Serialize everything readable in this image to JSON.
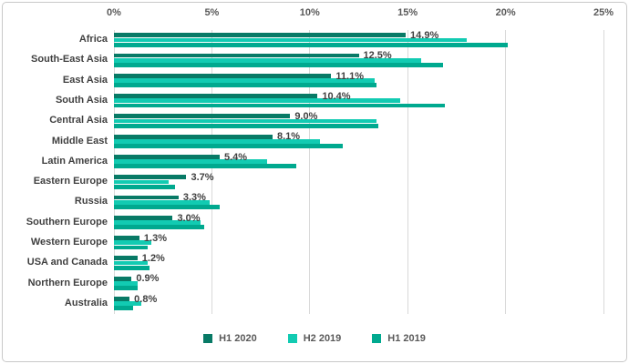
{
  "chart_data": {
    "type": "bar",
    "orientation": "horizontal",
    "title": "",
    "categories": [
      "Africa",
      "South-East Asia",
      "East Asia",
      "South Asia",
      "Central Asia",
      "Middle East",
      "Latin America",
      "Eastern Europe",
      "Russia",
      "Southern Europe",
      "Western Europe",
      "USA and Canada",
      "Northern Europe",
      "Australia"
    ],
    "series": [
      {
        "name": "H1 2020",
        "color": "#087a66",
        "values": [
          14.9,
          12.5,
          11.1,
          10.4,
          9.0,
          8.1,
          5.4,
          3.7,
          3.3,
          3.0,
          1.3,
          1.2,
          0.9,
          0.8
        ]
      },
      {
        "name": "H2 2019",
        "color": "#12cbb2",
        "values": [
          18.0,
          15.7,
          13.3,
          14.6,
          13.4,
          10.5,
          7.8,
          2.8,
          4.9,
          4.4,
          1.9,
          1.7,
          1.2,
          1.4
        ]
      },
      {
        "name": "H1 2019",
        "color": "#00a98f",
        "values": [
          20.1,
          16.8,
          13.4,
          16.9,
          13.5,
          11.7,
          9.3,
          3.1,
          5.4,
          4.6,
          1.7,
          1.8,
          1.2,
          1.0
        ]
      }
    ],
    "data_labels": [
      "14.9%",
      "12.5%",
      "11.1%",
      "10.4%",
      "9.0%",
      "8.1%",
      "5.4%",
      "3.7%",
      "3.3%",
      "3.0%",
      "1.3%",
      "1.2%",
      "0.9%",
      "0.8%"
    ],
    "data_labels_series": "H1 2020",
    "xlim": [
      0,
      25
    ],
    "x_ticks": [
      0,
      5,
      10,
      15,
      20,
      25
    ],
    "x_tick_labels": [
      "0%",
      "5%",
      "10%",
      "15%",
      "20%",
      "25%"
    ],
    "grid": true,
    "axis_position": "top",
    "legend_position": "bottom"
  },
  "colors": {
    "grid": "#d9d9d9",
    "frame_border": "#c9c9c9",
    "tick_text": "#595959",
    "label_text": "#404040",
    "background": "#ffffff"
  }
}
